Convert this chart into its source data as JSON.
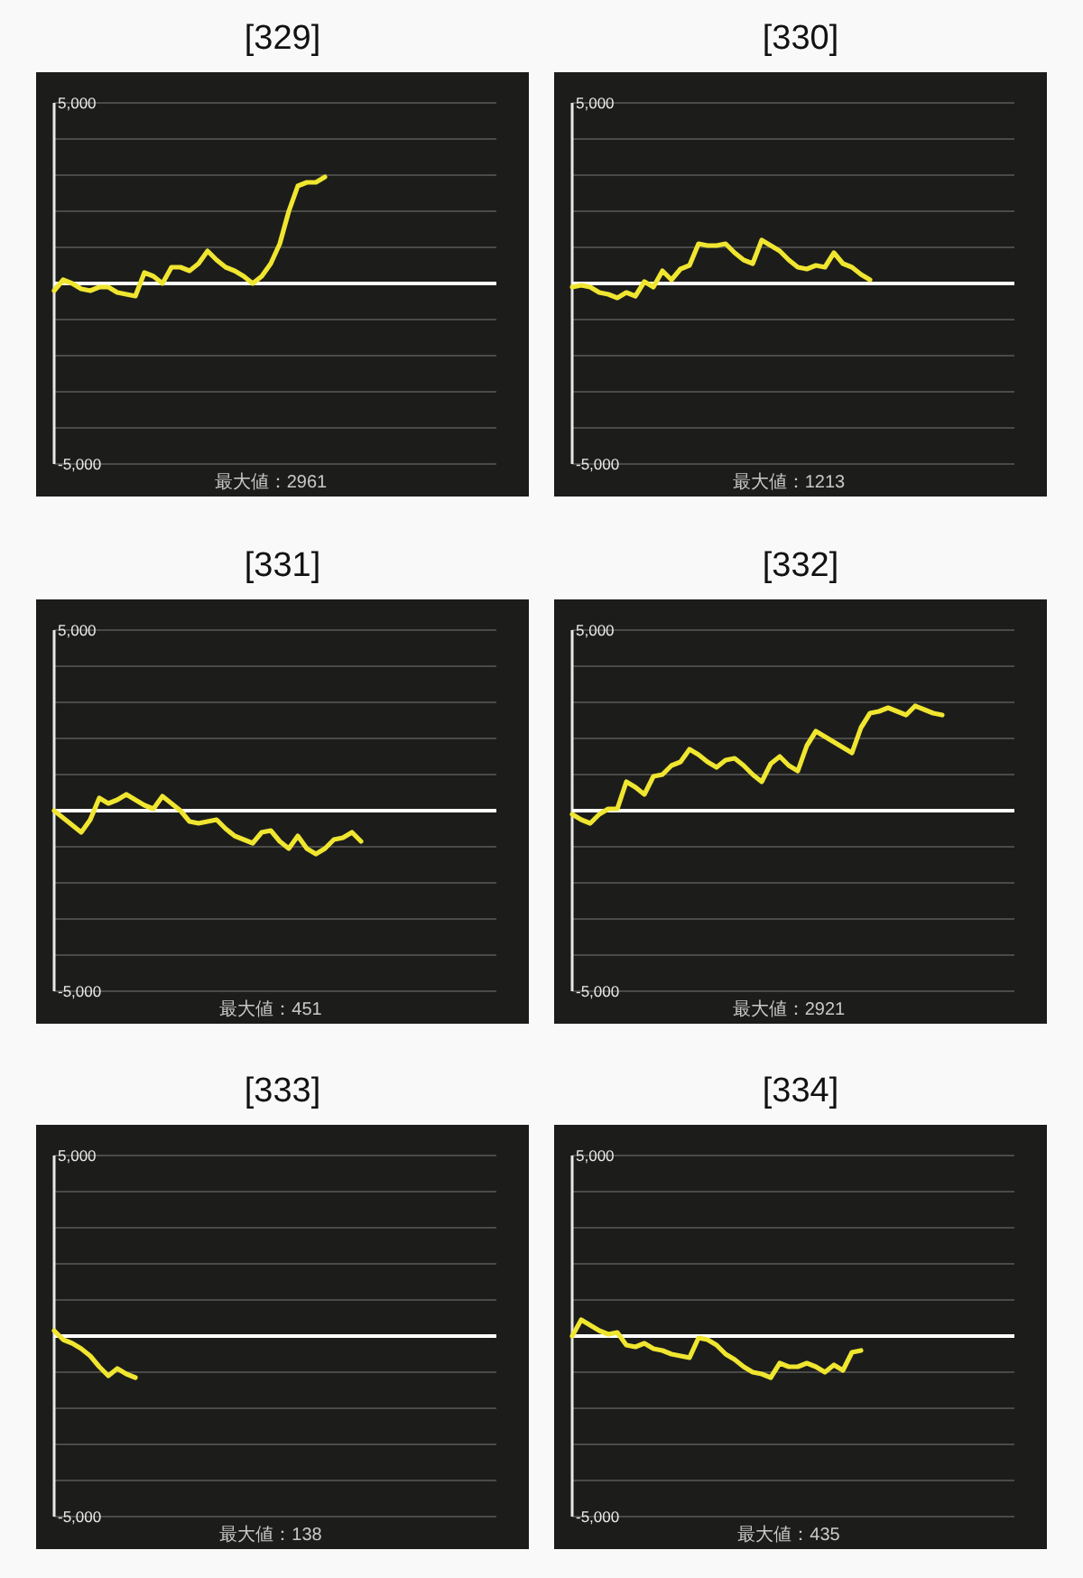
{
  "chart_data": [
    {
      "type": "line",
      "title": "[329]",
      "categories": [
        null,
        null,
        null,
        null,
        null,
        null,
        null,
        null,
        null,
        null,
        null,
        null,
        null,
        null,
        null,
        null,
        null,
        null,
        null,
        null,
        null,
        null,
        null,
        null,
        null,
        null,
        null,
        null,
        null,
        null,
        null,
        null,
        null,
        null,
        null,
        null,
        null,
        null,
        null,
        null,
        null,
        null,
        null,
        null,
        null,
        null,
        null,
        null,
        null,
        null
      ],
      "series": [
        {
          "color": "#f0e630",
          "values": [
            -200,
            100,
            0,
            -150,
            -200,
            -100,
            -100,
            -250,
            -300,
            -350,
            300,
            200,
            0,
            450,
            450,
            350,
            550,
            900,
            650,
            450,
            350,
            200,
            0,
            200,
            550,
            1100,
            2000,
            2700,
            2800,
            2800,
            2950,
            null,
            null,
            null,
            null,
            null,
            null,
            null,
            null,
            null,
            null,
            null,
            null,
            null,
            null,
            null,
            null,
            null,
            null,
            null
          ]
        }
      ],
      "ylim": [
        -5000,
        5000
      ],
      "yticks": [
        {
          "value": -5000,
          "label": "-5,000"
        },
        {
          "value": -4000,
          "label": null
        },
        {
          "value": -3000,
          "label": null
        },
        {
          "value": -2000,
          "label": null
        },
        {
          "value": -1000,
          "label": null
        },
        {
          "value": 0,
          "label": null
        },
        {
          "value": 1000,
          "label": null
        },
        {
          "value": 2000,
          "label": null
        },
        {
          "value": 3000,
          "label": null
        },
        {
          "value": 4000,
          "label": null
        },
        {
          "value": 5000,
          "label": "5,000"
        }
      ],
      "grid": "y",
      "tick_labels": "y",
      "ref_lines": [
        {
          "axis": "y",
          "value": 0,
          "color": "#ffffff"
        }
      ],
      "annotations": [
        "最大値：2961"
      ]
    },
    {
      "type": "line",
      "title": "[330]",
      "categories": [
        null,
        null,
        null,
        null,
        null,
        null,
        null,
        null,
        null,
        null,
        null,
        null,
        null,
        null,
        null,
        null,
        null,
        null,
        null,
        null,
        null,
        null,
        null,
        null,
        null,
        null,
        null,
        null,
        null,
        null,
        null,
        null,
        null,
        null,
        null,
        null,
        null,
        null,
        null,
        null,
        null,
        null,
        null,
        null,
        null,
        null,
        null,
        null,
        null,
        null
      ],
      "series": [
        {
          "color": "#f0e630",
          "values": [
            -100,
            -50,
            -100,
            -250,
            -300,
            -400,
            -250,
            -350,
            50,
            -100,
            350,
            100,
            400,
            500,
            1100,
            1050,
            1050,
            1100,
            850,
            650,
            550,
            1200,
            1050,
            900,
            650,
            450,
            400,
            500,
            450,
            850,
            550,
            450,
            250,
            100,
            null,
            null,
            null,
            null,
            null,
            null,
            null,
            null,
            null,
            null,
            null,
            null,
            null,
            null,
            null,
            null
          ]
        }
      ],
      "ylim": [
        -5000,
        5000
      ],
      "yticks": [
        {
          "value": -5000,
          "label": "-5,000"
        },
        {
          "value": -4000,
          "label": null
        },
        {
          "value": -3000,
          "label": null
        },
        {
          "value": -2000,
          "label": null
        },
        {
          "value": -1000,
          "label": null
        },
        {
          "value": 0,
          "label": null
        },
        {
          "value": 1000,
          "label": null
        },
        {
          "value": 2000,
          "label": null
        },
        {
          "value": 3000,
          "label": null
        },
        {
          "value": 4000,
          "label": null
        },
        {
          "value": 5000,
          "label": "5,000"
        }
      ],
      "grid": "y",
      "tick_labels": "y",
      "ref_lines": [
        {
          "axis": "y",
          "value": 0,
          "color": "#ffffff"
        }
      ],
      "annotations": [
        "最大値：1213"
      ]
    },
    {
      "type": "line",
      "title": "[331]",
      "categories": [
        null,
        null,
        null,
        null,
        null,
        null,
        null,
        null,
        null,
        null,
        null,
        null,
        null,
        null,
        null,
        null,
        null,
        null,
        null,
        null,
        null,
        null,
        null,
        null,
        null,
        null,
        null,
        null,
        null,
        null,
        null,
        null,
        null,
        null,
        null,
        null,
        null,
        null,
        null,
        null,
        null,
        null,
        null,
        null,
        null,
        null,
        null,
        null,
        null,
        null
      ],
      "series": [
        {
          "color": "#f0e630",
          "values": [
            0,
            -200,
            -400,
            -600,
            -250,
            350,
            200,
            300,
            450,
            300,
            150,
            50,
            400,
            200,
            0,
            -300,
            -350,
            -300,
            -250,
            -500,
            -700,
            -800,
            -900,
            -600,
            -550,
            -850,
            -1050,
            -700,
            -1050,
            -1200,
            -1050,
            -800,
            -750,
            -600,
            -850,
            null,
            null,
            null,
            null,
            null,
            null,
            null,
            null,
            null,
            null,
            null,
            null,
            null,
            null,
            null
          ]
        }
      ],
      "ylim": [
        -5000,
        5000
      ],
      "yticks": [
        {
          "value": -5000,
          "label": "-5,000"
        },
        {
          "value": -4000,
          "label": null
        },
        {
          "value": -3000,
          "label": null
        },
        {
          "value": -2000,
          "label": null
        },
        {
          "value": -1000,
          "label": null
        },
        {
          "value": 0,
          "label": null
        },
        {
          "value": 1000,
          "label": null
        },
        {
          "value": 2000,
          "label": null
        },
        {
          "value": 3000,
          "label": null
        },
        {
          "value": 4000,
          "label": null
        },
        {
          "value": 5000,
          "label": "5,000"
        }
      ],
      "grid": "y",
      "tick_labels": "y",
      "ref_lines": [
        {
          "axis": "y",
          "value": 0,
          "color": "#ffffff"
        }
      ],
      "annotations": [
        "最大値：451"
      ]
    },
    {
      "type": "line",
      "title": "[332]",
      "categories": [
        null,
        null,
        null,
        null,
        null,
        null,
        null,
        null,
        null,
        null,
        null,
        null,
        null,
        null,
        null,
        null,
        null,
        null,
        null,
        null,
        null,
        null,
        null,
        null,
        null,
        null,
        null,
        null,
        null,
        null,
        null,
        null,
        null,
        null,
        null,
        null,
        null,
        null,
        null,
        null,
        null,
        null,
        null,
        null,
        null,
        null,
        null,
        null,
        null,
        null
      ],
      "series": [
        {
          "color": "#f0e630",
          "values": [
            -100,
            -250,
            -350,
            -100,
            50,
            50,
            800,
            650,
            450,
            950,
            1000,
            1250,
            1350,
            1700,
            1550,
            1350,
            1200,
            1400,
            1450,
            1250,
            1000,
            800,
            1300,
            1500,
            1250,
            1100,
            1800,
            2200,
            2050,
            1900,
            1750,
            1600,
            2300,
            2700,
            2750,
            2850,
            2750,
            2650,
            2900,
            2800,
            2700,
            2650,
            null,
            null,
            null,
            null,
            null,
            null,
            null,
            null
          ]
        }
      ],
      "ylim": [
        -5000,
        5000
      ],
      "yticks": [
        {
          "value": -5000,
          "label": "-5,000"
        },
        {
          "value": -4000,
          "label": null
        },
        {
          "value": -3000,
          "label": null
        },
        {
          "value": -2000,
          "label": null
        },
        {
          "value": -1000,
          "label": null
        },
        {
          "value": 0,
          "label": null
        },
        {
          "value": 1000,
          "label": null
        },
        {
          "value": 2000,
          "label": null
        },
        {
          "value": 3000,
          "label": null
        },
        {
          "value": 4000,
          "label": null
        },
        {
          "value": 5000,
          "label": "5,000"
        }
      ],
      "grid": "y",
      "tick_labels": "y",
      "ref_lines": [
        {
          "axis": "y",
          "value": 0,
          "color": "#ffffff"
        }
      ],
      "annotations": [
        "最大値：2921"
      ]
    },
    {
      "type": "line",
      "title": "[333]",
      "categories": [
        null,
        null,
        null,
        null,
        null,
        null,
        null,
        null,
        null,
        null,
        null,
        null,
        null,
        null,
        null,
        null,
        null,
        null,
        null,
        null,
        null,
        null,
        null,
        null,
        null,
        null,
        null,
        null,
        null,
        null,
        null,
        null,
        null,
        null,
        null,
        null,
        null,
        null,
        null,
        null,
        null,
        null,
        null,
        null,
        null,
        null,
        null,
        null,
        null,
        null
      ],
      "series": [
        {
          "color": "#f0e630",
          "values": [
            150,
            -100,
            -200,
            -350,
            -550,
            -850,
            -1100,
            -900,
            -1050,
            -1150,
            null,
            null,
            null,
            null,
            null,
            null,
            null,
            null,
            null,
            null,
            null,
            null,
            null,
            null,
            null,
            null,
            null,
            null,
            null,
            null,
            null,
            null,
            null,
            null,
            null,
            null,
            null,
            null,
            null,
            null,
            null,
            null,
            null,
            null,
            null,
            null,
            null,
            null,
            null,
            null
          ]
        }
      ],
      "ylim": [
        -5000,
        5000
      ],
      "yticks": [
        {
          "value": -5000,
          "label": "-5,000"
        },
        {
          "value": -4000,
          "label": null
        },
        {
          "value": -3000,
          "label": null
        },
        {
          "value": -2000,
          "label": null
        },
        {
          "value": -1000,
          "label": null
        },
        {
          "value": 0,
          "label": null
        },
        {
          "value": 1000,
          "label": null
        },
        {
          "value": 2000,
          "label": null
        },
        {
          "value": 3000,
          "label": null
        },
        {
          "value": 4000,
          "label": null
        },
        {
          "value": 5000,
          "label": "5,000"
        }
      ],
      "grid": "y",
      "tick_labels": "y",
      "ref_lines": [
        {
          "axis": "y",
          "value": 0,
          "color": "#ffffff"
        }
      ],
      "annotations": [
        "最大値：138"
      ]
    },
    {
      "type": "line",
      "title": "[334]",
      "categories": [
        null,
        null,
        null,
        null,
        null,
        null,
        null,
        null,
        null,
        null,
        null,
        null,
        null,
        null,
        null,
        null,
        null,
        null,
        null,
        null,
        null,
        null,
        null,
        null,
        null,
        null,
        null,
        null,
        null,
        null,
        null,
        null,
        null,
        null,
        null,
        null,
        null,
        null,
        null,
        null,
        null,
        null,
        null,
        null,
        null,
        null,
        null,
        null,
        null,
        null
      ],
      "series": [
        {
          "color": "#f0e630",
          "values": [
            0,
            450,
            300,
            150,
            50,
            100,
            -250,
            -300,
            -200,
            -350,
            -400,
            -500,
            -550,
            -600,
            -50,
            -100,
            -250,
            -500,
            -650,
            -850,
            -1000,
            -1050,
            -1150,
            -750,
            -850,
            -850,
            -750,
            -850,
            -1000,
            -800,
            -950,
            -450,
            -400,
            null,
            null,
            null,
            null,
            null,
            null,
            null,
            null,
            null,
            null,
            null,
            null,
            null,
            null,
            null,
            null,
            null
          ]
        }
      ],
      "ylim": [
        -5000,
        5000
      ],
      "yticks": [
        {
          "value": -5000,
          "label": "-5,000"
        },
        {
          "value": -4000,
          "label": null
        },
        {
          "value": -3000,
          "label": null
        },
        {
          "value": -2000,
          "label": null
        },
        {
          "value": -1000,
          "label": null
        },
        {
          "value": 0,
          "label": null
        },
        {
          "value": 1000,
          "label": null
        },
        {
          "value": 2000,
          "label": null
        },
        {
          "value": 3000,
          "label": null
        },
        {
          "value": 4000,
          "label": null
        },
        {
          "value": 5000,
          "label": "5,000"
        }
      ],
      "grid": "y",
      "tick_labels": "y",
      "ref_lines": [
        {
          "axis": "y",
          "value": 0,
          "color": "#ffffff"
        }
      ],
      "annotations": [
        "最大値：435"
      ]
    }
  ]
}
